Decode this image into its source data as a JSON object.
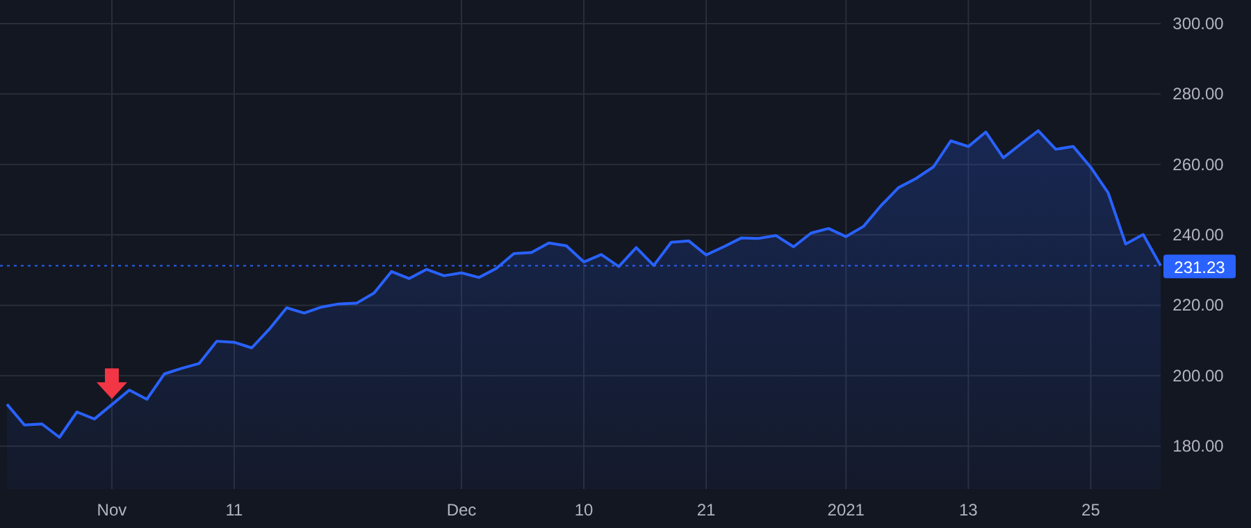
{
  "chart_data": {
    "type": "area",
    "categories": [
      null,
      null,
      null,
      null,
      null,
      null,
      "Nov",
      null,
      null,
      null,
      null,
      null,
      null,
      "11",
      null,
      null,
      null,
      null,
      null,
      null,
      null,
      null,
      null,
      null,
      null,
      null,
      "Dec",
      null,
      null,
      null,
      null,
      null,
      null,
      "10",
      null,
      null,
      null,
      null,
      null,
      null,
      "21",
      null,
      null,
      null,
      null,
      null,
      null,
      null,
      "2021",
      null,
      null,
      null,
      null,
      null,
      null,
      "13",
      null,
      null,
      null,
      null,
      null,
      null,
      "25",
      null,
      null,
      null,
      null
    ],
    "series": [
      {
        "color": "#2962ff",
        "values": [
          191.9,
          186.0,
          186.3,
          182.5,
          189.7,
          187.7,
          191.8,
          195.9,
          193.3,
          200.5,
          202.1,
          203.5,
          209.8,
          209.5,
          207.9,
          213.2,
          219.3,
          217.8,
          219.5,
          220.4,
          220.6,
          223.5,
          229.6,
          227.6,
          230.2,
          228.4,
          229.2,
          227.9,
          230.5,
          234.7,
          235.0,
          237.7,
          236.9,
          232.3,
          234.4,
          231.0,
          236.4,
          231.3,
          237.9,
          238.3,
          234.3,
          236.6,
          239.1,
          239.0,
          239.8,
          236.6,
          240.5,
          241.8,
          239.5,
          242.4,
          248.3,
          253.4,
          256.0,
          259.3,
          266.7,
          265.1,
          269.2,
          261.9,
          265.8,
          269.6,
          264.3,
          265.1,
          259.2,
          251.9,
          237.4,
          240.1,
          231.23
        ]
      }
    ],
    "ylim": [
      167.8,
      306.7
    ],
    "yticks": [
      {
        "value": 180,
        "label": "180.00"
      },
      {
        "value": 200,
        "label": "200.00"
      },
      {
        "value": 220,
        "label": "220.00"
      },
      {
        "value": 240,
        "label": "240.00"
      },
      {
        "value": 260,
        "label": "260.00"
      },
      {
        "value": 280,
        "label": "280.00"
      },
      {
        "value": 300,
        "label": "300.00"
      }
    ],
    "ref_lines": [
      {
        "axis": "y",
        "value": 231.23,
        "label": "231.23",
        "color": "#2962ff",
        "line_style": "dotted"
      }
    ],
    "grid": true
  }
}
